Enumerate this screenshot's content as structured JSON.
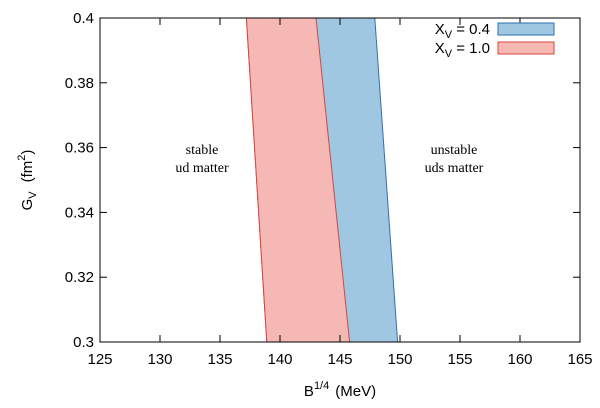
{
  "chart_data": {
    "type": "area",
    "xlabel": {
      "base": "B",
      "sup": "1/4",
      "unit": "(MeV)"
    },
    "ylabel": {
      "base": "G",
      "sub": "V",
      "unit_open": "(fm",
      "unit_sup": "2",
      "unit_close": ")"
    },
    "xlim": [
      125,
      165
    ],
    "ylim": [
      0.3,
      0.4
    ],
    "xticks": [
      "125",
      "130",
      "135",
      "140",
      "145",
      "150",
      "155",
      "160",
      "165"
    ],
    "yticks": [
      "0.3",
      "0.32",
      "0.34",
      "0.36",
      "0.38",
      "0.4"
    ],
    "grid": false,
    "legend_position": "top-right",
    "series": [
      {
        "name": "X_V = 0.4",
        "legend": {
          "base": "X",
          "sub": "V",
          "rest": " = 0.4"
        },
        "fill": "#9fc7e2",
        "stroke": "#2f6fb2",
        "lower_boundary": [
          [
            138.9,
            0.3
          ],
          [
            137.2,
            0.4
          ]
        ],
        "upper_boundary": [
          [
            149.8,
            0.3
          ],
          [
            147.9,
            0.4
          ]
        ]
      },
      {
        "name": "X_V = 1.0",
        "legend": {
          "base": "X",
          "sub": "V",
          "rest": " = 1.0"
        },
        "fill": "#f5b8b4",
        "stroke": "#d9453d",
        "lower_boundary": [
          [
            138.9,
            0.3
          ],
          [
            137.2,
            0.4
          ]
        ],
        "upper_boundary": [
          [
            145.8,
            0.3
          ],
          [
            143.0,
            0.4
          ]
        ]
      }
    ],
    "annotations": [
      {
        "lines": [
          "stable",
          "ud matter"
        ],
        "x": 133.5,
        "y": 0.358
      },
      {
        "lines": [
          "unstable",
          "uds matter"
        ],
        "x": 154.5,
        "y": 0.358
      }
    ]
  }
}
